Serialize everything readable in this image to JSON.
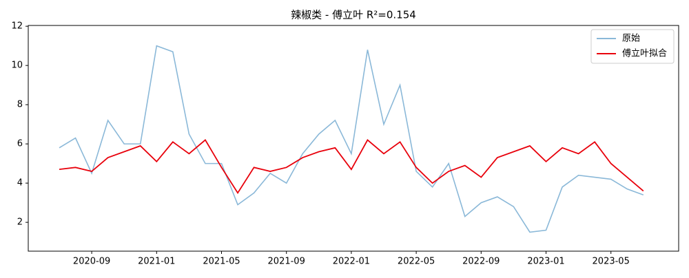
{
  "chart_data": {
    "type": "line",
    "title": "辣椒类 - 傅立叶 R²=0.154",
    "x": [
      "2020-07",
      "2020-08",
      "2020-09",
      "2020-10",
      "2020-11",
      "2020-12",
      "2021-01",
      "2021-02",
      "2021-03",
      "2021-04",
      "2021-05",
      "2021-06",
      "2021-07",
      "2021-08",
      "2021-09",
      "2021-10",
      "2021-11",
      "2021-12",
      "2022-01",
      "2022-02",
      "2022-03",
      "2022-04",
      "2022-05",
      "2022-06",
      "2022-07",
      "2022-08",
      "2022-09",
      "2022-10",
      "2022-11",
      "2022-12",
      "2023-01",
      "2023-02",
      "2023-03",
      "2023-04",
      "2023-05",
      "2023-06",
      "2023-07"
    ],
    "series": [
      {
        "name": "原始",
        "color": "#8ab8d8",
        "values": [
          5.8,
          6.3,
          4.5,
          7.2,
          6.0,
          6.0,
          11.0,
          10.7,
          6.5,
          5.0,
          5.0,
          2.9,
          3.5,
          4.5,
          4.0,
          5.5,
          6.5,
          7.2,
          5.5,
          10.8,
          7.0,
          9.0,
          4.6,
          3.8,
          5.0,
          2.3,
          3.0,
          3.3,
          2.8,
          1.5,
          1.6,
          3.8,
          4.4,
          4.3,
          4.2,
          3.7,
          3.4
        ]
      },
      {
        "name": "傅立叶拟合",
        "color": "#e8000b",
        "values": [
          4.7,
          4.8,
          4.6,
          5.3,
          5.6,
          5.9,
          5.1,
          6.1,
          5.5,
          6.2,
          4.8,
          3.5,
          4.8,
          4.6,
          4.8,
          5.3,
          5.6,
          5.8,
          4.7,
          6.2,
          5.5,
          6.1,
          4.8,
          4.0,
          4.6,
          4.9,
          4.3,
          5.3,
          5.6,
          5.9,
          5.1,
          5.8,
          5.5,
          6.1,
          5.0,
          4.3,
          3.6
        ]
      }
    ],
    "xticks": [
      "2020-09",
      "2021-01",
      "2021-05",
      "2021-09",
      "2022-01",
      "2022-05",
      "2022-09",
      "2023-01",
      "2023-05"
    ],
    "ylim": [
      0.53,
      12.04
    ],
    "yticks": [
      2,
      4,
      6,
      8,
      10,
      12
    ],
    "legend": "upper right"
  }
}
